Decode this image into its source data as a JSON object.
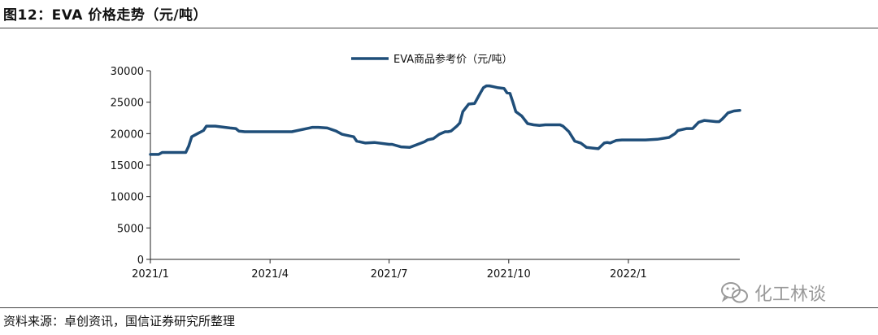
{
  "figure": {
    "title": "图12：EVA 价格走势（元/吨）",
    "source": "资料来源：卓创资讯，国信证券研究所整理",
    "watermark_text": "化工林谈",
    "watermark_icon": "wechat-icon"
  },
  "chart_data": {
    "type": "line",
    "title": "",
    "xlabel": "",
    "ylabel": "",
    "ylim": [
      0,
      30000
    ],
    "yticks": [
      0,
      5000,
      10000,
      15000,
      20000,
      25000,
      30000
    ],
    "ytick_labels": [
      "0",
      "5000",
      "10000",
      "15000",
      "20000",
      "25000",
      "30000"
    ],
    "xlim": [
      0,
      100
    ],
    "xticks": [
      0,
      20.3,
      40.5,
      60.8,
      81.1
    ],
    "xtick_labels": [
      "2021/1",
      "2021/4",
      "2021/7",
      "2021/10",
      "2022/1"
    ],
    "grid": false,
    "legend_position": "top-center",
    "line_color": "#1f4e79",
    "series": [
      {
        "name": "EVA商品参考价（元/吨）",
        "x": [
          0,
          1.4,
          2,
          6,
          6.5,
          7,
          8,
          9,
          9.5,
          11,
          13.5,
          14.5,
          15,
          16,
          24,
          27.5,
          28.5,
          30,
          31.5,
          32.5,
          33,
          34.5,
          35,
          36.5,
          38,
          40.5,
          41,
          42.5,
          44,
          46.5,
          47,
          48,
          49,
          50,
          50.5,
          51,
          52,
          52.5,
          53,
          54,
          55,
          56,
          56.5,
          57,
          57.5,
          58,
          59,
          60,
          60.5,
          61,
          61.5,
          62,
          63,
          64,
          65,
          66,
          67,
          69.5,
          70,
          71,
          72,
          73,
          74,
          75,
          76,
          77,
          77.5,
          78,
          79,
          80,
          84,
          86,
          88,
          89,
          89.5,
          90,
          91,
          92,
          93,
          94,
          96,
          96.5,
          97,
          98,
          99,
          100
        ],
        "y": [
          16700,
          16700,
          17000,
          17000,
          18000,
          19500,
          20000,
          20500,
          21200,
          21200,
          20900,
          20800,
          20400,
          20300,
          20300,
          21000,
          21000,
          20900,
          20400,
          19900,
          19800,
          19500,
          18800,
          18500,
          18600,
          18300,
          18300,
          17900,
          17800,
          18700,
          19000,
          19200,
          19900,
          20300,
          20300,
          20400,
          21200,
          21700,
          23500,
          24700,
          24800,
          26500,
          27300,
          27600,
          27600,
          27500,
          27300,
          27200,
          26500,
          26400,
          25000,
          23500,
          22800,
          21600,
          21400,
          21300,
          21400,
          21400,
          21200,
          20300,
          18800,
          18500,
          17800,
          17700,
          17600,
          18500,
          18600,
          18500,
          18900,
          19000,
          19000,
          19100,
          19400,
          20000,
          20500,
          20600,
          20800,
          20800,
          21800,
          22100,
          21900,
          21900,
          22300,
          23300,
          23600,
          23700
        ]
      }
    ]
  }
}
